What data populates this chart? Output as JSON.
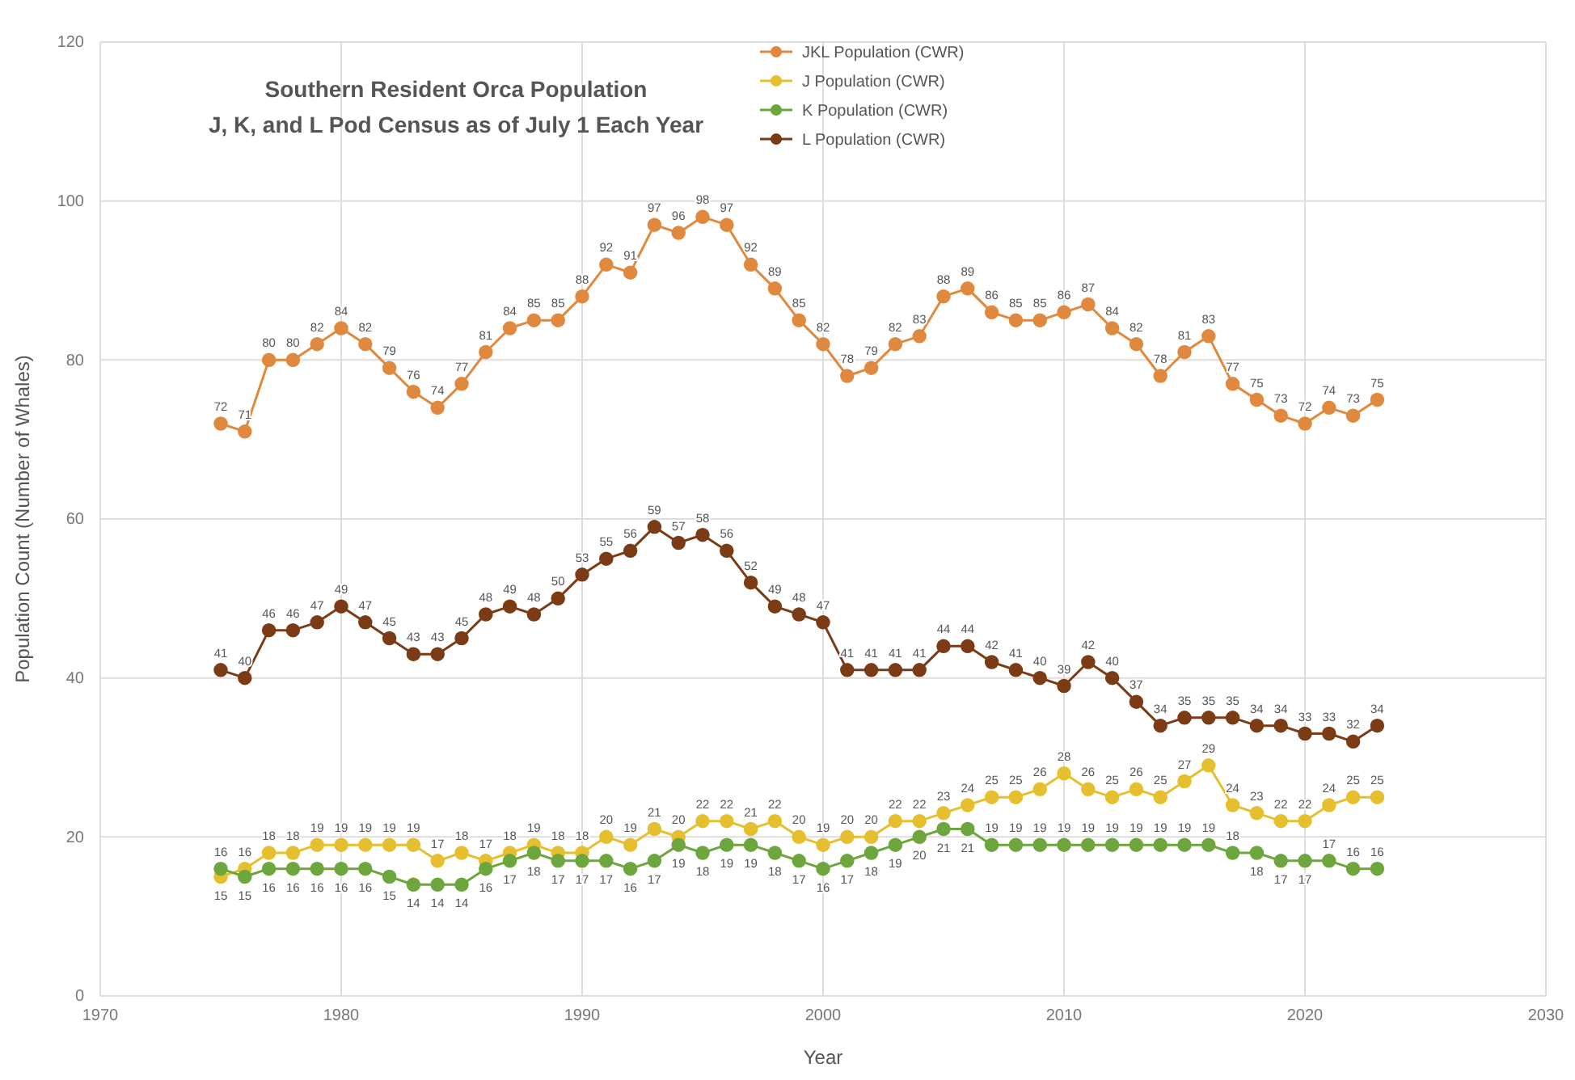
{
  "chart_data": {
    "type": "line",
    "title": "Southern Resident Orca Population",
    "subtitle": "J, K, and L Pod Census as of July 1 Each Year",
    "xlabel": "Year",
    "ylabel": "Population Count (Number of Whales)",
    "x": [
      1975,
      1976,
      1977,
      1978,
      1979,
      1980,
      1981,
      1982,
      1983,
      1984,
      1985,
      1986,
      1987,
      1988,
      1989,
      1990,
      1991,
      1992,
      1993,
      1994,
      1995,
      1996,
      1997,
      1998,
      1999,
      2000,
      2001,
      2002,
      2003,
      2004,
      2005,
      2006,
      2007,
      2008,
      2009,
      2010,
      2011,
      2012,
      2013,
      2014,
      2015,
      2016,
      2017,
      2018,
      2019,
      2020,
      2021,
      2022,
      2023
    ],
    "series": [
      {
        "name": "JKL Population (CWR)",
        "color": "#e0893e",
        "values": [
          72,
          71,
          80,
          80,
          82,
          84,
          82,
          79,
          76,
          74,
          77,
          81,
          84,
          85,
          85,
          88,
          92,
          91,
          97,
          96,
          98,
          97,
          92,
          89,
          85,
          82,
          78,
          79,
          82,
          83,
          88,
          89,
          86,
          85,
          85,
          86,
          87,
          84,
          82,
          78,
          81,
          83,
          77,
          75,
          73,
          72,
          74,
          73,
          75
        ]
      },
      {
        "name": "J Population (CWR)",
        "color": "#e6bf2e",
        "values": [
          15,
          16,
          18,
          18,
          19,
          19,
          19,
          19,
          19,
          17,
          18,
          17,
          18,
          19,
          18,
          18,
          20,
          19,
          21,
          20,
          22,
          22,
          21,
          22,
          20,
          19,
          20,
          20,
          22,
          22,
          23,
          24,
          25,
          25,
          26,
          28,
          26,
          25,
          26,
          25,
          27,
          29,
          24,
          23,
          22,
          22,
          24,
          25,
          25
        ]
      },
      {
        "name": "K Population (CWR)",
        "color": "#6ca63c",
        "values": [
          16,
          15,
          16,
          16,
          16,
          16,
          16,
          15,
          14,
          14,
          14,
          16,
          17,
          18,
          17,
          17,
          17,
          16,
          17,
          19,
          18,
          19,
          19,
          18,
          17,
          16,
          17,
          18,
          19,
          20,
          21,
          21,
          19,
          19,
          19,
          19,
          19,
          19,
          19,
          19,
          19,
          19,
          18,
          18,
          17,
          17,
          17,
          16,
          16
        ]
      },
      {
        "name": "L Population (CWR)",
        "color": "#7b3b14",
        "values": [
          41,
          40,
          46,
          46,
          47,
          49,
          47,
          45,
          43,
          43,
          45,
          48,
          49,
          48,
          50,
          53,
          55,
          56,
          59,
          57,
          58,
          56,
          52,
          49,
          48,
          47,
          41,
          41,
          41,
          41,
          44,
          44,
          42,
          41,
          40,
          39,
          42,
          40,
          37,
          34,
          35,
          35,
          35,
          34,
          34,
          33,
          33,
          32,
          34
        ]
      }
    ],
    "xlim": [
      1970,
      2030
    ],
    "xticks": [
      1970,
      1980,
      1990,
      2000,
      2010,
      2020,
      2030
    ],
    "ylim": [
      0,
      120
    ],
    "yticks": [
      0,
      20,
      40,
      60,
      80,
      100,
      120
    ],
    "grid": true,
    "legend": "top",
    "marker": "circle",
    "line_style": "solid",
    "data_labels": true
  }
}
